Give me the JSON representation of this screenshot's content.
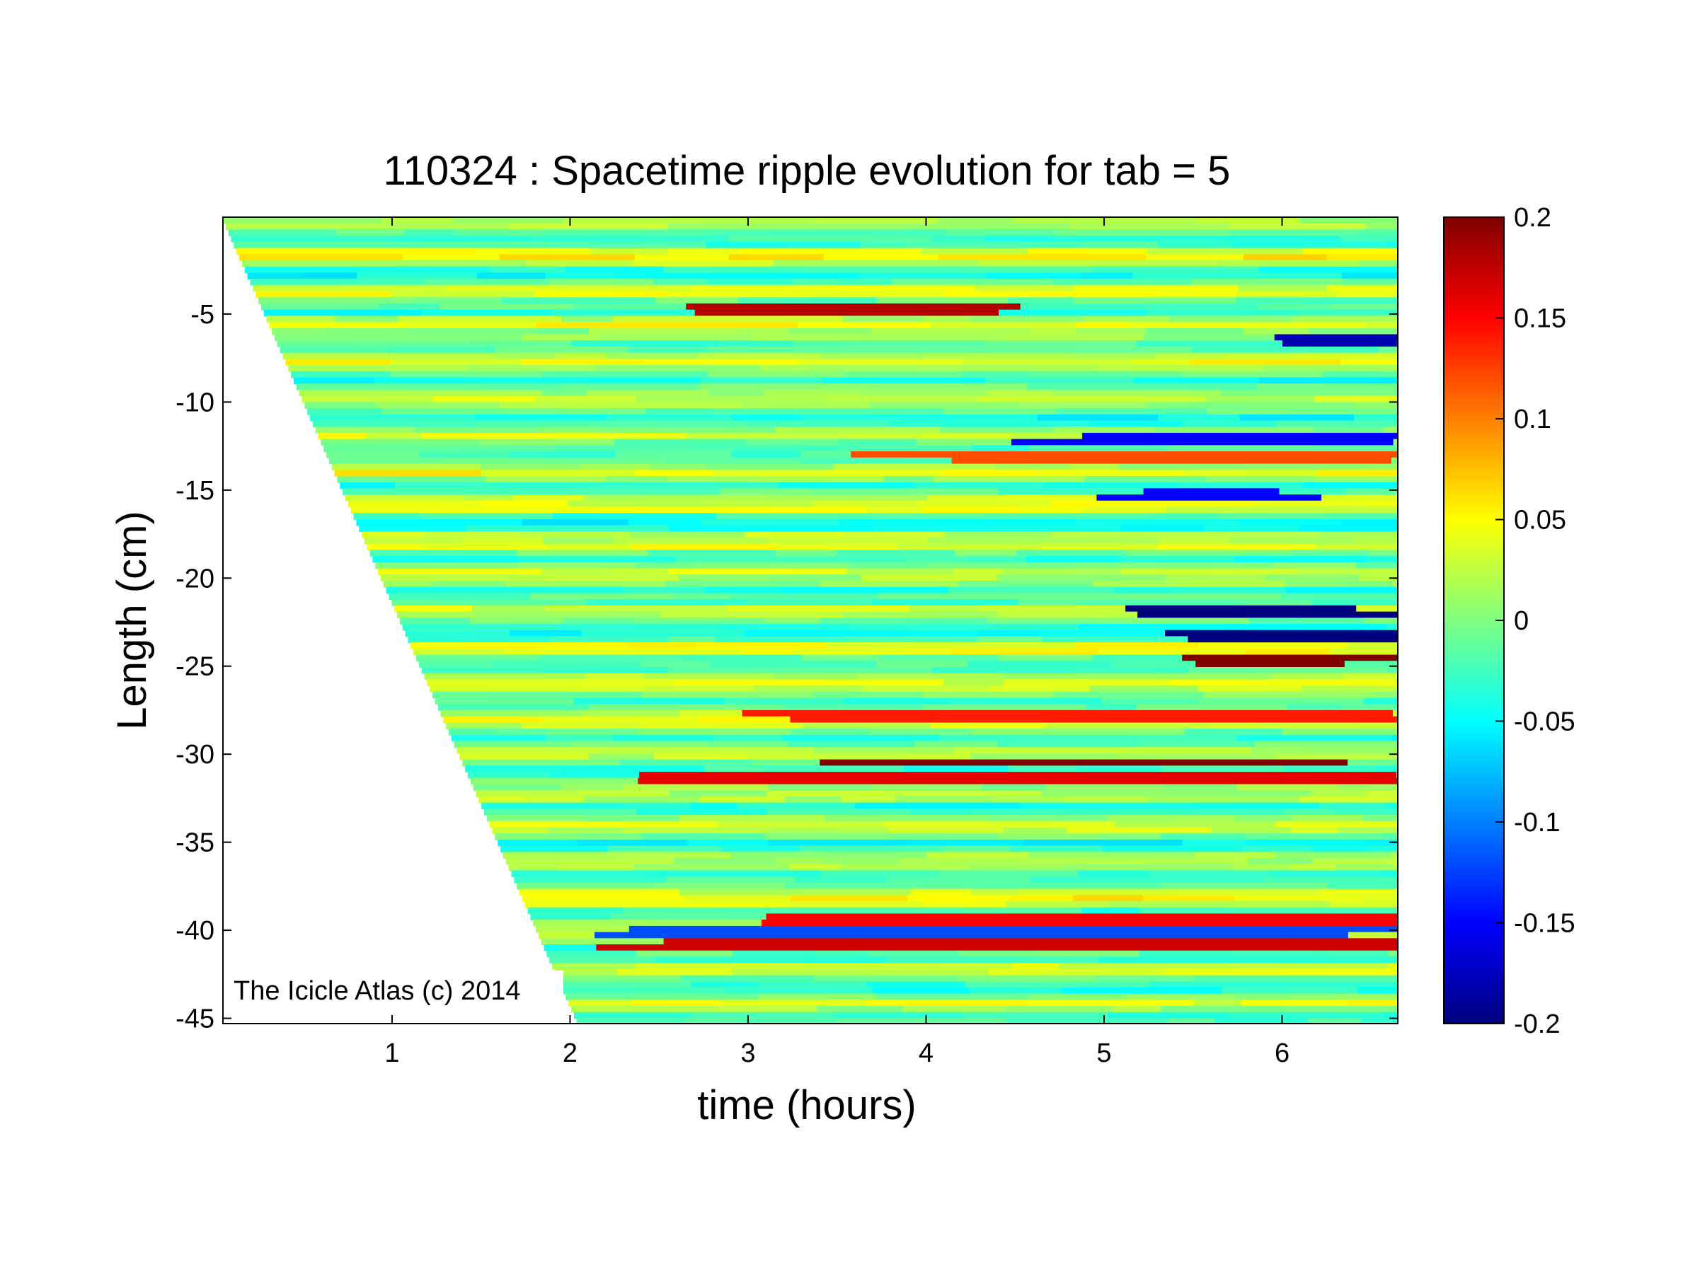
{
  "chart_data": {
    "type": "heatmap",
    "title": "110324 : Spacetime ripple evolution for tab = 5",
    "xlabel": "time (hours)",
    "ylabel": "Length (cm)",
    "xlim": [
      0.05,
      6.65
    ],
    "ylim": [
      -45.3,
      0.5
    ],
    "xticks": [
      1,
      2,
      3,
      4,
      5,
      6
    ],
    "yticks": [
      -5,
      -10,
      -15,
      -20,
      -25,
      -30,
      -35,
      -40,
      -45
    ],
    "xtick_labels": [
      "1",
      "2",
      "3",
      "4",
      "5",
      "6"
    ],
    "ytick_labels": [
      "-5",
      "-10",
      "-15",
      "-20",
      "-25",
      "-30",
      "-35",
      "-40",
      "-45"
    ],
    "colorbar": {
      "colormap": "jet",
      "clim": [
        -0.2,
        0.2
      ],
      "ticks": [
        0.2,
        0.15,
        0.1,
        0.05,
        0,
        -0.05,
        -0.1,
        -0.15,
        -0.2
      ],
      "tick_labels": [
        "0.2",
        "0.15",
        "0.1",
        "0.05",
        "0",
        "-0.05",
        "-0.1",
        "-0.15",
        "-0.2"
      ]
    },
    "grid": false,
    "growth_front": [
      [
        0.05,
        0.5
      ],
      [
        2.05,
        -45.3
      ]
    ],
    "annotation": "The Icicle Atlas (c) 2014",
    "ripple_bands": [
      {
        "y": -4.5,
        "t_start": 2.9,
        "t_end": 4.8,
        "value": 0.18
      },
      {
        "y": -21.8,
        "t_start": 5.2,
        "t_end": 6.65,
        "value": -0.2
      },
      {
        "y": -23.2,
        "t_start": 5.3,
        "t_end": 6.65,
        "value": -0.2
      },
      {
        "y": -24.4,
        "t_start": 5.3,
        "t_end": 6.65,
        "value": 0.2
      },
      {
        "y": -27.8,
        "t_start": 3.2,
        "t_end": 6.65,
        "value": 0.14
      },
      {
        "y": -30.3,
        "t_start": 3.3,
        "t_end": 6.65,
        "value": 0.2
      },
      {
        "y": -31.1,
        "t_start": 2.3,
        "t_end": 6.65,
        "value": 0.16
      },
      {
        "y": -39.3,
        "t_start": 2.8,
        "t_end": 6.65,
        "value": 0.15
      },
      {
        "y": -40.7,
        "t_start": 2.2,
        "t_end": 6.65,
        "value": 0.17
      },
      {
        "y": -40.0,
        "t_start": 2.4,
        "t_end": 6.65,
        "value": -0.12
      },
      {
        "y": -11.8,
        "t_start": 4.8,
        "t_end": 6.65,
        "value": -0.15
      },
      {
        "y": -12.9,
        "t_start": 3.8,
        "t_end": 6.65,
        "value": 0.12
      },
      {
        "y": -15.1,
        "t_start": 4.9,
        "t_end": 6.1,
        "value": -0.15
      },
      {
        "y": -6.4,
        "t_start": 6.2,
        "t_end": 6.65,
        "value": -0.18
      }
    ]
  }
}
